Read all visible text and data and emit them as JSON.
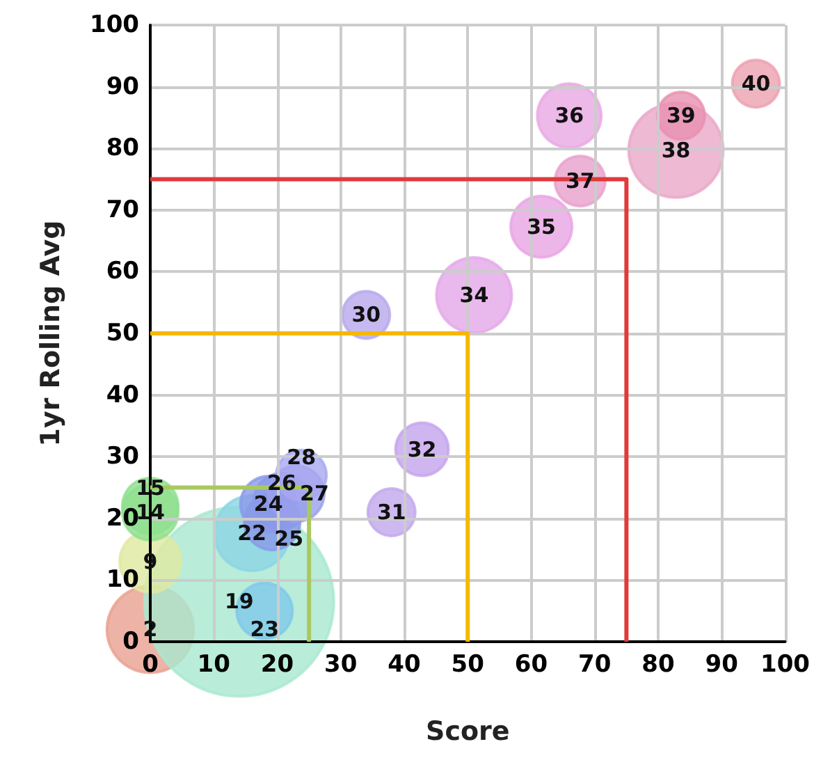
{
  "chart_data": {
    "type": "bubble",
    "xlabel": "Score",
    "ylabel": "1yr Rolling Avg",
    "xlim": [
      0,
      100
    ],
    "ylim": [
      0,
      100
    ],
    "xticks": [
      0,
      10,
      20,
      30,
      40,
      50,
      60,
      70,
      80,
      90,
      100
    ],
    "yticks": [
      0,
      10,
      20,
      30,
      40,
      50,
      60,
      70,
      80,
      90,
      100
    ],
    "grid": true,
    "series": [
      {
        "type": "line",
        "color": "#a9c95f",
        "x": [
          0,
          25,
          25
        ],
        "values": [
          25,
          25,
          0
        ]
      },
      {
        "type": "line",
        "color": "#f5b800",
        "x": [
          0,
          50,
          50
        ],
        "values": [
          50,
          50,
          0
        ]
      },
      {
        "type": "line",
        "color": "#e03a3a",
        "x": [
          0,
          75,
          75
        ],
        "values": [
          75,
          75,
          0
        ]
      },
      {
        "x": [
          0,
          14,
          18,
          0,
          0,
          0,
          16,
          18.6,
          19.2,
          20.7,
          23,
          23.8,
          34,
          38,
          42.8,
          51,
          61.6,
          66,
          67.7,
          82.8,
          83.6,
          95.4
        ],
        "values": [
          2,
          6.5,
          5,
          13,
          21,
          22,
          17.6,
          22.3,
          19.4,
          22.8,
          24,
          27,
          53,
          21,
          31.2,
          56.2,
          67.3,
          85.3,
          74.7,
          79.7,
          85.3,
          90.5
        ],
        "sizes": [
          0.21,
          1,
          0.087,
          0.105,
          0.087,
          0.087,
          0.158,
          0.087,
          0.087,
          0.087,
          0.087,
          0.07,
          0.0625,
          0.0625,
          0.078,
          0.158,
          0.105,
          0.114,
          0.07,
          0.25,
          0.0625,
          0.0625
        ],
        "colors": [
          "#e8a090",
          "#a8e8d0",
          "#80c8e8",
          "#e0e8a0",
          "#90e090",
          "#90e090",
          "#8cd4e4",
          "#8a9ae8",
          "#8a9ae8",
          "#8a9ae8",
          "#9aa0ec",
          "#a8a8f0",
          "#b8a8ec",
          "#c0a8ec",
          "#c4a4ec",
          "#e4a8e8",
          "#e8a4e4",
          "#e8a8e4",
          "#e8a0cc",
          "#e8a8c8",
          "#e890b0",
          "#eca0b0"
        ]
      }
    ],
    "annotations": [
      {
        "text": "2",
        "x": 0,
        "y": 2
      },
      {
        "text": "19",
        "x": 14,
        "y": 6.5
      },
      {
        "text": "23",
        "x": 18,
        "y": 5
      },
      {
        "text": "9",
        "x": 0,
        "y": 13
      },
      {
        "text": "14",
        "x": 0,
        "y": 21
      },
      {
        "text": "15",
        "x": 0,
        "y": 22
      },
      {
        "text": "22",
        "x": 16,
        "y": 17.6
      },
      {
        "text": "24",
        "x": 18.6,
        "y": 22.3
      },
      {
        "text": "25",
        "x": 19.2,
        "y": 19.4
      },
      {
        "text": "26",
        "x": 20.7,
        "y": 22.8
      },
      {
        "text": "27",
        "x": 23,
        "y": 24
      },
      {
        "text": "28",
        "x": 23.8,
        "y": 27
      },
      {
        "text": "30",
        "x": 34,
        "y": 53
      },
      {
        "text": "31",
        "x": 38,
        "y": 21
      },
      {
        "text": "32",
        "x": 42.8,
        "y": 31.2
      },
      {
        "text": "34",
        "x": 51,
        "y": 56.2
      },
      {
        "text": "35",
        "x": 61.6,
        "y": 67.3
      },
      {
        "text": "36",
        "x": 66,
        "y": 85.3
      },
      {
        "text": "37",
        "x": 67.7,
        "y": 74.7
      },
      {
        "text": "38",
        "x": 82.8,
        "y": 79.7
      },
      {
        "text": "39",
        "x": 83.6,
        "y": 85.3
      },
      {
        "text": "40",
        "x": 95.4,
        "y": 90.5
      }
    ]
  }
}
